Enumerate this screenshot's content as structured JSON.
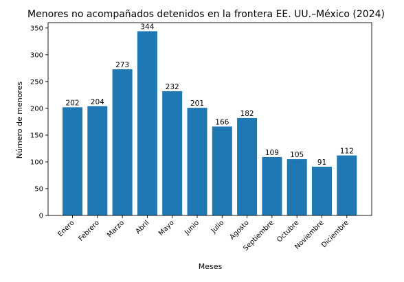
{
  "chart_data": {
    "type": "bar",
    "title": "Menores no acompañados detenidos en la frontera EE. UU.–México (2024)",
    "xlabel": "Meses",
    "ylabel": "Número de menores",
    "categories": [
      "Enero",
      "Febrero",
      "Marzo",
      "Abril",
      "Mayo",
      "Junio",
      "Julio",
      "Agosto",
      "Septiembre",
      "Octubre",
      "Noviembre",
      "Diciembre"
    ],
    "values": [
      202,
      204,
      273,
      344,
      232,
      201,
      166,
      182,
      109,
      105,
      91,
      112
    ],
    "ylim": [
      0,
      360
    ],
    "yticks": [
      0,
      50,
      100,
      150,
      200,
      250,
      300,
      350
    ],
    "grid": false,
    "legend": "none",
    "bar_color": "#1f77b4",
    "data_labels": true
  }
}
